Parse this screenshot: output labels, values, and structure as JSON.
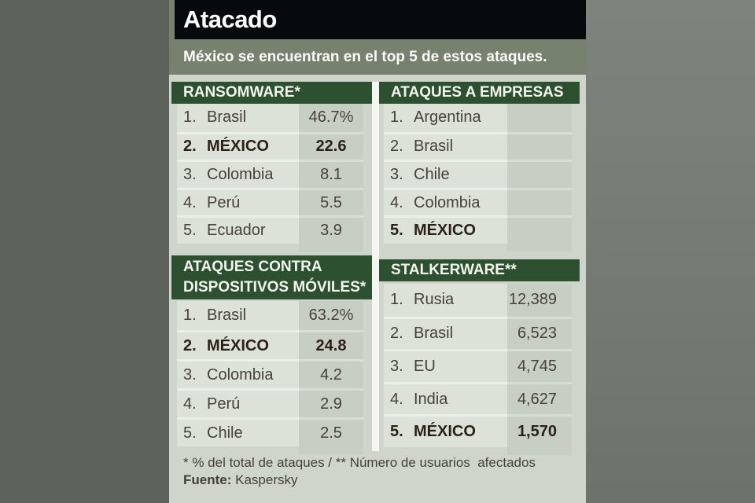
{
  "title": "Atacado",
  "subtitle": "México se encuentran en el top 5 de estos ataques.",
  "colors": {
    "title_bar": "#060a0d",
    "olive_band": "#76816f",
    "section_header_green": "#2d5130",
    "panel_bg": "#cfd5ca",
    "name_cell_bg": "#dde2d8",
    "value_cell_bg": "#c7cec3",
    "highlight_text": "#2b2118"
  },
  "tables": {
    "ransomware": {
      "header": "RANSOMWARE*",
      "rows": [
        {
          "rank": "1.",
          "name": "Brasil",
          "value": "46.7%"
        },
        {
          "rank": "2.",
          "name": "MÉXICO",
          "value": "22.6"
        },
        {
          "rank": "3.",
          "name": "Colombia",
          "value": "8.1"
        },
        {
          "rank": "4.",
          "name": "Perú",
          "value": "5.5"
        },
        {
          "rank": "5.",
          "name": "Ecuador",
          "value": "3.9"
        }
      ]
    },
    "empresas": {
      "header": "ATAQUES A EMPRESAS",
      "rows": [
        {
          "rank": "1.",
          "name": "Argentina",
          "value": ""
        },
        {
          "rank": "2.",
          "name": "Brasil",
          "value": ""
        },
        {
          "rank": "3.",
          "name": "Chile",
          "value": ""
        },
        {
          "rank": "4.",
          "name": "Colombia",
          "value": ""
        },
        {
          "rank": "5.",
          "name": "MÉXICO",
          "value": ""
        }
      ]
    },
    "moviles": {
      "header_line1": "ATAQUES CONTRA",
      "header_line2": "DISPOSITIVOS MÓVILES*",
      "rows": [
        {
          "rank": "1.",
          "name": "Brasil",
          "value": "63.2%"
        },
        {
          "rank": "2.",
          "name": "MÉXICO",
          "value": "24.8"
        },
        {
          "rank": "3.",
          "name": "Colombia",
          "value": "4.2"
        },
        {
          "rank": "4.",
          "name": "Perú",
          "value": "2.9"
        },
        {
          "rank": "5.",
          "name": "Chile",
          "value": "2.5"
        }
      ]
    },
    "stalkerware": {
      "header": "STALKERWARE**",
      "rows": [
        {
          "rank": "1.",
          "name": "Rusia",
          "value": "12,389"
        },
        {
          "rank": "2.",
          "name": "Brasil",
          "value": "6,523"
        },
        {
          "rank": "3.",
          "name": "EU",
          "value": "4,745"
        },
        {
          "rank": "4.",
          "name": "India",
          "value": "4,627"
        },
        {
          "rank": "5.",
          "name": "MÉXICO",
          "value": "1,570"
        }
      ]
    }
  },
  "footer": {
    "note": "* % del total de ataques / ** Número de usuarios  afectados",
    "source_label": "Fuente:",
    "source_value": "Kaspersky"
  }
}
